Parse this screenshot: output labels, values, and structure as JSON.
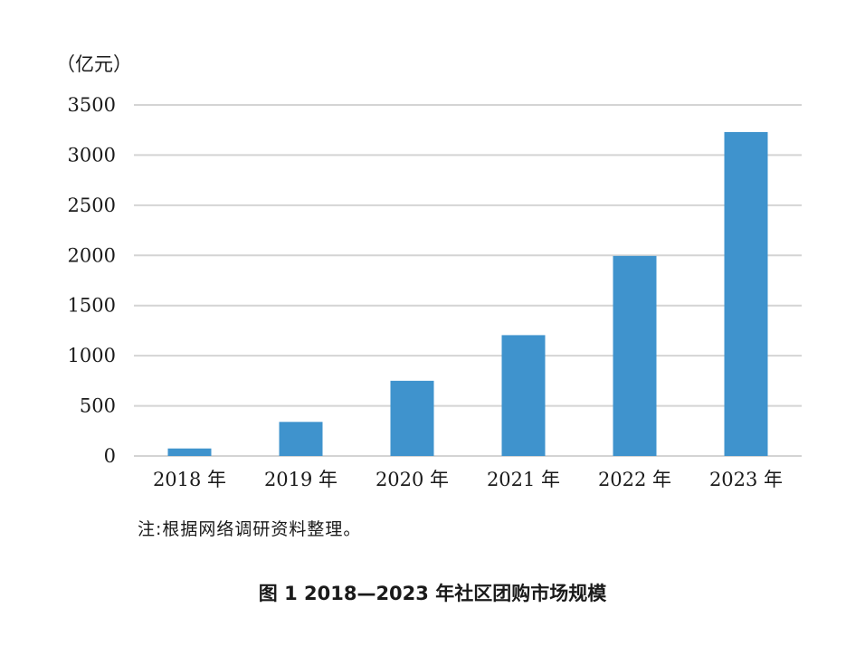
{
  "chart_data": {
    "type": "bar",
    "unit_label": "（亿元）",
    "categories": [
      "2018 年",
      "2019 年",
      "2020 年",
      "2021 年",
      "2022 年",
      "2023 年"
    ],
    "values": [
      75,
      340,
      750,
      1205,
      1995,
      3230
    ],
    "ylim": [
      0,
      3500
    ],
    "yticks": [
      0,
      500,
      1000,
      1500,
      2000,
      2500,
      3000,
      3500
    ],
    "grid": true,
    "bar_color": "#3f93cd",
    "grid_color": "#d4d4d4"
  },
  "note": "注:根据网络调研资料整理。",
  "caption": "图 1  2018—2023 年社区团购市场规模"
}
